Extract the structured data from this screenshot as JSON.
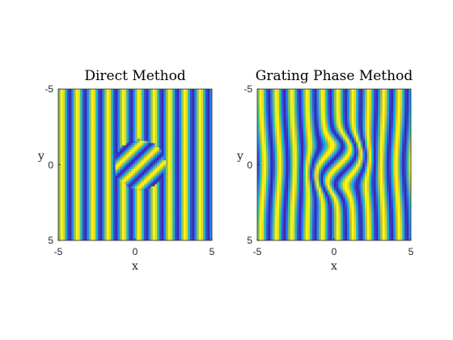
{
  "chart_data": [
    {
      "type": "heatmap",
      "title": "Direct Method",
      "xlabel": "x",
      "ylabel": "y",
      "xlim": [
        -5,
        5
      ],
      "ylim": [
        -5,
        5
      ],
      "y_direction": "reverse",
      "xticks": [
        "-5",
        "0",
        "5"
      ],
      "yticks": [
        "-5",
        "0",
        "5"
      ],
      "field": {
        "description_type": "sinusoidal grating",
        "background_period": 1,
        "background_orientation_deg": 0,
        "inset_shape": "disk",
        "inset_center": [
          0.3,
          0
        ],
        "inset_radius": 1.65,
        "inset_period": 1,
        "inset_orientation_deg": 45
      },
      "colormap": [
        "#3e26a8",
        "#2e6ef8",
        "#12b2e0",
        "#35c68c",
        "#d8ba2c",
        "#f9fb15"
      ]
    },
    {
      "type": "heatmap",
      "title": "Grating Phase Method",
      "xlabel": "x",
      "ylabel": "y",
      "xlim": [
        -5,
        5
      ],
      "ylim": [
        -5,
        5
      ],
      "y_direction": "reverse",
      "xticks": [
        "-5",
        "0",
        "5"
      ],
      "yticks": [
        "-5",
        "0",
        "5"
      ],
      "field": {
        "description_type": "sinusoidal grating with smoothly warped phase",
        "background_period": 1,
        "background_orientation_deg": 0,
        "inset_shape": "disk",
        "inset_center": [
          0.3,
          0
        ],
        "inset_radius": 1.65,
        "inset_period": 1,
        "inset_orientation_deg": 45
      },
      "colormap": [
        "#3e26a8",
        "#2e6ef8",
        "#12b2e0",
        "#35c68c",
        "#d8ba2c",
        "#f9fb15"
      ]
    }
  ]
}
